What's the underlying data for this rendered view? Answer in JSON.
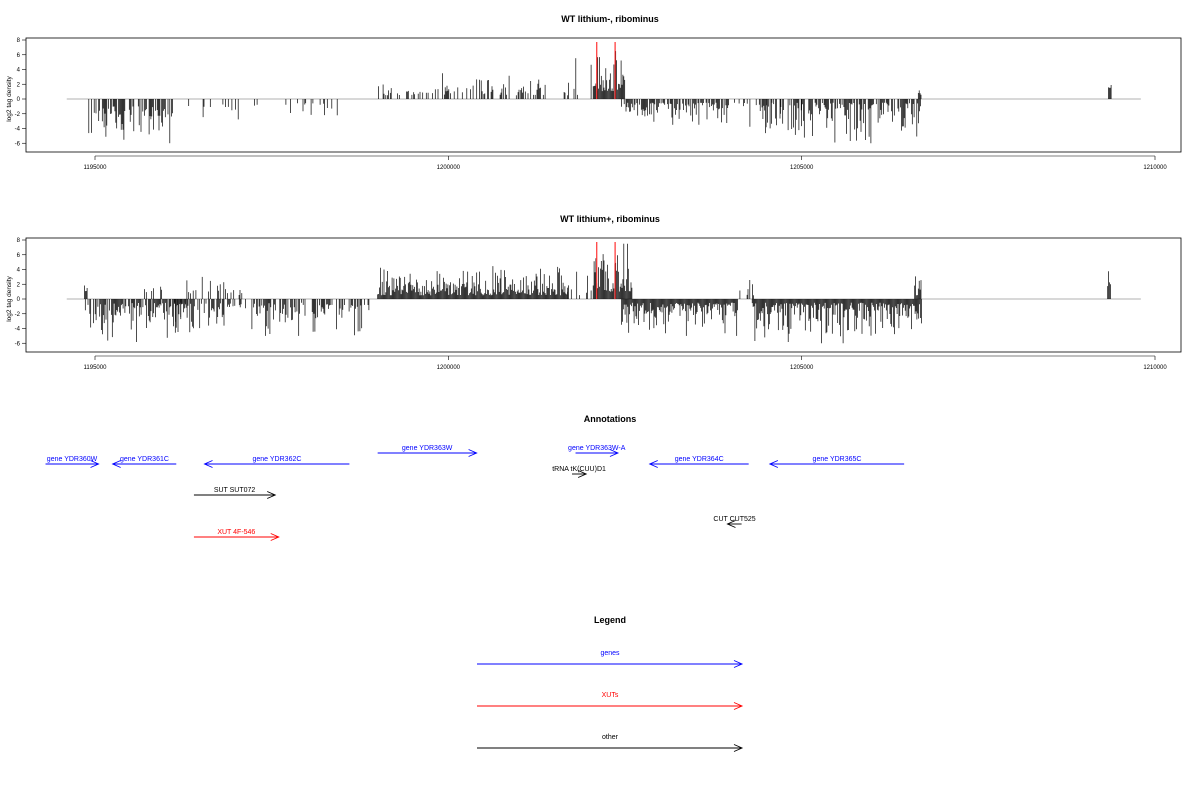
{
  "chart_data": [
    {
      "type": "bar",
      "title": "WT lithium-, ribominus",
      "ylabel": "log2 tag density",
      "xlim": [
        1194500,
        1210000
      ],
      "ylim": [
        -6,
        8
      ],
      "xticks": [
        1195000,
        1200000,
        1205000,
        1210000
      ],
      "xtick_labels": [
        "1195000",
        "1200000",
        "1205000",
        "1210000"
      ],
      "yticks": [
        -6,
        -4,
        -2,
        0,
        2,
        4,
        6,
        8
      ],
      "ytick_labels": [
        "-6",
        "-4",
        "-2",
        "0",
        "2",
        "4",
        "6",
        "8"
      ],
      "red_markers": [
        1202100,
        1202360
      ],
      "segments": [
        {
          "start": 1194900,
          "end": 1196100,
          "sign": -1,
          "min": 1.0,
          "max": 6.0,
          "density": 0.55
        },
        {
          "start": 1196300,
          "end": 1197400,
          "sign": -1,
          "min": 0.5,
          "max": 3.0,
          "density": 0.14
        },
        {
          "start": 1197600,
          "end": 1198600,
          "sign": -1,
          "min": 0.5,
          "max": 3.5,
          "density": 0.1
        },
        {
          "start": 1199000,
          "end": 1201400,
          "sign": 1,
          "min": 0.5,
          "max": 3.5,
          "density": 0.45
        },
        {
          "start": 1201600,
          "end": 1202050,
          "sign": 1,
          "min": 0.5,
          "max": 6.5,
          "density": 0.12
        },
        {
          "start": 1202050,
          "end": 1202500,
          "sign": 1,
          "min": 1.0,
          "max": 6.5,
          "density": 1.0
        },
        {
          "start": 1202450,
          "end": 1204000,
          "sign": -1,
          "min": 0.5,
          "max": 3.5,
          "density": 0.7
        },
        {
          "start": 1204000,
          "end": 1205000,
          "sign": -1,
          "min": 0.5,
          "max": 4.0,
          "density": 0.1
        },
        {
          "start": 1204400,
          "end": 1206700,
          "sign": -1,
          "min": 0.5,
          "max": 6.0,
          "density": 0.7
        },
        {
          "start": 1206650,
          "end": 1206700,
          "sign": 1,
          "min": 0.5,
          "max": 2.0,
          "density": 1.0
        },
        {
          "start": 1209340,
          "end": 1209380,
          "sign": 1,
          "min": 1.5,
          "max": 4.0,
          "density": 1.0
        }
      ]
    },
    {
      "type": "bar",
      "title": "WT lithium+, ribominus",
      "ylabel": "log2 tag density",
      "xlim": [
        1194500,
        1210000
      ],
      "ylim": [
        -6,
        8
      ],
      "xticks": [
        1195000,
        1200000,
        1205000,
        1210000
      ],
      "xtick_labels": [
        "1195000",
        "1200000",
        "1205000",
        "1210000"
      ],
      "yticks": [
        -6,
        -4,
        -2,
        0,
        2,
        4,
        6,
        8
      ],
      "ytick_labels": [
        "-6",
        "-4",
        "-2",
        "0",
        "2",
        "4",
        "6",
        "8"
      ],
      "red_markers": [
        1202100,
        1202360
      ],
      "segments": [
        {
          "start": 1194850,
          "end": 1194900,
          "sign": 1,
          "min": 1.0,
          "max": 2.0,
          "density": 1.0
        },
        {
          "start": 1194850,
          "end": 1196300,
          "sign": -1,
          "min": 0.5,
          "max": 6.0,
          "density": 0.8
        },
        {
          "start": 1195700,
          "end": 1196000,
          "sign": 1,
          "min": 0.5,
          "max": 2.5,
          "density": 0.3
        },
        {
          "start": 1196100,
          "end": 1198900,
          "sign": -1,
          "min": 0.5,
          "max": 5.0,
          "density": 0.6
        },
        {
          "start": 1196300,
          "end": 1197100,
          "sign": 1,
          "min": 0.5,
          "max": 3.0,
          "density": 0.3
        },
        {
          "start": 1199000,
          "end": 1201700,
          "sign": 1,
          "min": 0.5,
          "max": 4.5,
          "density": 1.0
        },
        {
          "start": 1201600,
          "end": 1202050,
          "sign": 1,
          "min": 0.5,
          "max": 5.5,
          "density": 0.15
        },
        {
          "start": 1202050,
          "end": 1202600,
          "sign": 1,
          "min": 1.0,
          "max": 7.5,
          "density": 1.0
        },
        {
          "start": 1202450,
          "end": 1204100,
          "sign": -1,
          "min": 0.5,
          "max": 5.0,
          "density": 1.0
        },
        {
          "start": 1204100,
          "end": 1204500,
          "sign": 1,
          "min": 0.5,
          "max": 3.5,
          "density": 0.15
        },
        {
          "start": 1204300,
          "end": 1206700,
          "sign": -1,
          "min": 0.5,
          "max": 6.0,
          "density": 1.0
        },
        {
          "start": 1206600,
          "end": 1206700,
          "sign": 1,
          "min": 0.5,
          "max": 4.0,
          "density": 1.0
        },
        {
          "start": 1209330,
          "end": 1209380,
          "sign": 1,
          "min": 1.5,
          "max": 5.0,
          "density": 1.0
        }
      ]
    }
  ],
  "annotations": {
    "title": "Annotations",
    "items": [
      {
        "label": "gene YDR360W",
        "start": 1194300,
        "end": 1195050,
        "dir": "right",
        "row": 1,
        "color": "#0000ff",
        "label_above": true
      },
      {
        "label": "gene YDR361C",
        "start": 1195250,
        "end": 1196150,
        "dir": "left",
        "row": 1,
        "color": "#0000ff"
      },
      {
        "label": "gene YDR362C",
        "start": 1196550,
        "end": 1198600,
        "dir": "left",
        "row": 1,
        "color": "#0000ff"
      },
      {
        "label": "gene YDR363W",
        "start": 1199000,
        "end": 1200400,
        "dir": "right",
        "row": 0,
        "color": "#0000ff"
      },
      {
        "label": "gene YDR363W-A",
        "start": 1201800,
        "end": 1202400,
        "dir": "right",
        "row": 0,
        "color": "#0000ff"
      },
      {
        "label": "gene YDR364C",
        "start": 1202850,
        "end": 1204250,
        "dir": "left",
        "row": 1,
        "color": "#0000ff"
      },
      {
        "label": "gene YDR365C",
        "start": 1204550,
        "end": 1206450,
        "dir": "left",
        "row": 1,
        "color": "#0000ff"
      },
      {
        "label": "tRNA tK(CUU)D1",
        "start": 1201750,
        "end": 1201950,
        "dir": "right",
        "row": 2,
        "color": "#000000"
      },
      {
        "label": "SUT SUT072",
        "start": 1196400,
        "end": 1197550,
        "dir": "right",
        "row": 3,
        "color": "#000000"
      },
      {
        "label": "XUT 4F-546",
        "start": 1196400,
        "end": 1197600,
        "dir": "right",
        "row": 5,
        "color": "#ff0000"
      },
      {
        "label": "CUT CUT525",
        "start": 1203950,
        "end": 1204150,
        "dir": "left",
        "row": 4,
        "color": "#000000"
      }
    ]
  },
  "legend": {
    "title": "Legend",
    "items": [
      {
        "label": "genes",
        "color": "#0000ff"
      },
      {
        "label": "XUTs",
        "color": "#ff0000"
      },
      {
        "label": "other",
        "color": "#000000"
      }
    ]
  }
}
